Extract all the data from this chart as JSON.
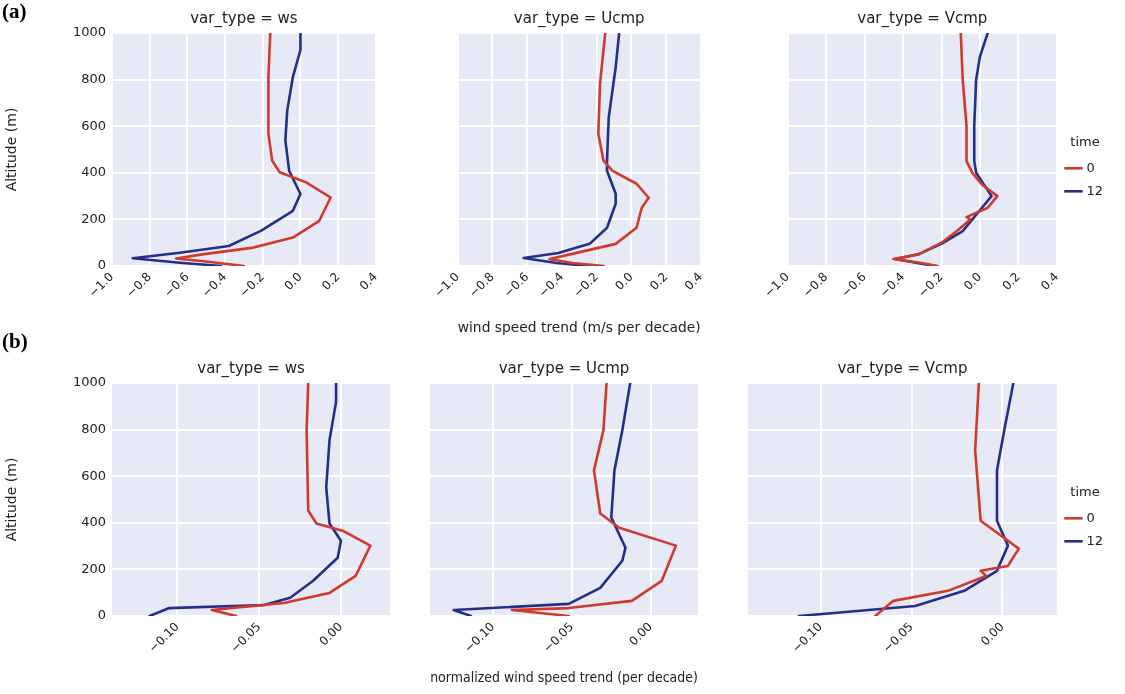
{
  "chart_data": [
    {
      "type": "line",
      "title": "var_type = ws",
      "ylabel": "Altitude (m)",
      "annotations": [
        "(a)"
      ],
      "xlim": [
        -1.0,
        0.4
      ],
      "ylim": [
        0,
        1000
      ],
      "xticks": [
        {
          "value": -1.0,
          "label": "−1.0"
        },
        {
          "value": -0.8,
          "label": "−0.8"
        },
        {
          "value": -0.6,
          "label": "−0.6"
        },
        {
          "value": -0.4,
          "label": "−0.4"
        },
        {
          "value": -0.2,
          "label": "−0.2"
        },
        {
          "value": 0.0,
          "label": "0.0"
        },
        {
          "value": 0.2,
          "label": "0.2"
        },
        {
          "value": 0.4,
          "label": "0.4"
        }
      ],
      "yticks": [
        0,
        200,
        400,
        600,
        800,
        1000
      ],
      "grid": true,
      "legend": false,
      "marker": "none",
      "series": [
        {
          "color": "#d03a2c",
          "x": [
            -0.16,
            -0.17,
            -0.17,
            -0.15,
            -0.11,
            0.03,
            0.16,
            0.1,
            -0.04,
            -0.25,
            -0.52,
            -0.66,
            -0.5,
            -0.3
          ],
          "values": [
            1000,
            812,
            568,
            452,
            402,
            359,
            294,
            194,
            122,
            79,
            50,
            32,
            19,
            0
          ]
        },
        {
          "color": "#22308a",
          "x": [
            0.0,
            0.0,
            -0.04,
            -0.07,
            -0.08,
            -0.06,
            0.0,
            -0.04,
            -0.21,
            -0.38,
            -0.64,
            -0.89,
            -0.64,
            -0.42
          ],
          "values": [
            1000,
            927,
            812,
            668,
            539,
            409,
            309,
            237,
            151,
            86,
            57,
            33,
            14,
            0
          ]
        }
      ]
    },
    {
      "type": "line",
      "title": "var_type = Ucmp",
      "xlabel": "wind speed trend (m/s per decade)",
      "tick_labels": "x",
      "xlim": [
        -1.0,
        0.4
      ],
      "ylim": [
        0,
        1000
      ],
      "xticks": [
        {
          "value": -1.0,
          "label": "−1.0"
        },
        {
          "value": -0.8,
          "label": "−0.8"
        },
        {
          "value": -0.6,
          "label": "−0.6"
        },
        {
          "value": -0.4,
          "label": "−0.4"
        },
        {
          "value": -0.2,
          "label": "−0.2"
        },
        {
          "value": 0.0,
          "label": "0.0"
        },
        {
          "value": 0.2,
          "label": "0.2"
        },
        {
          "value": 0.4,
          "label": "0.4"
        }
      ],
      "yticks": [
        0,
        200,
        400,
        600,
        800,
        1000
      ],
      "grid": true,
      "legend": false,
      "marker": "none",
      "series": [
        {
          "color": "#d03a2c",
          "x": [
            -0.15,
            -0.18,
            -0.19,
            -0.16,
            -0.11,
            0.03,
            0.1,
            0.06,
            0.03,
            -0.09,
            -0.34,
            -0.47,
            -0.34,
            -0.16
          ],
          "values": [
            1000,
            784,
            568,
            452,
            409,
            353,
            293,
            250,
            164,
            95,
            52,
            30,
            13,
            0
          ]
        },
        {
          "color": "#22308a",
          "x": [
            -0.07,
            -0.09,
            -0.13,
            -0.14,
            -0.14,
            -0.09,
            -0.09,
            -0.14,
            -0.24,
            -0.42,
            -0.62,
            -0.43,
            -0.25
          ],
          "values": [
            1000,
            853,
            638,
            452,
            409,
            310,
            267,
            164,
            95,
            56,
            34,
            13,
            0
          ]
        }
      ]
    },
    {
      "type": "line",
      "title": "var_type = Vcmp",
      "tick_labels": "x",
      "legend": "right",
      "legend_title": "time",
      "xlim": [
        -1.0,
        0.4
      ],
      "ylim": [
        0,
        1000
      ],
      "xticks": [
        {
          "value": -1.0,
          "label": "−1.0"
        },
        {
          "value": -0.8,
          "label": "−0.8"
        },
        {
          "value": -0.6,
          "label": "−0.6"
        },
        {
          "value": -0.4,
          "label": "−0.4"
        },
        {
          "value": -0.2,
          "label": "−0.2"
        },
        {
          "value": 0.0,
          "label": "0.0"
        },
        {
          "value": 0.2,
          "label": "0.2"
        },
        {
          "value": 0.4,
          "label": "0.4"
        }
      ],
      "yticks": [
        0,
        200,
        400,
        600,
        800,
        1000
      ],
      "grid": true,
      "marker": "none",
      "series": [
        {
          "name": "0",
          "color": "#d03a2c",
          "x": [
            -0.1,
            -0.09,
            -0.07,
            -0.07,
            -0.04,
            0.01,
            0.09,
            0.04,
            -0.07,
            -0.05,
            -0.12,
            -0.2,
            -0.32,
            -0.45,
            -0.32,
            -0.22
          ],
          "values": [
            1000,
            800,
            600,
            450,
            400,
            350,
            300,
            250,
            210,
            200,
            150,
            100,
            50,
            30,
            15,
            0
          ]
        },
        {
          "name": "12",
          "color": "#22308a",
          "x": [
            0.04,
            0.0,
            -0.02,
            -0.03,
            -0.03,
            -0.02,
            0.02,
            0.06,
            0.01,
            -0.09,
            -0.19,
            -0.32,
            -0.44,
            -0.34,
            -0.24
          ],
          "values": [
            1000,
            900,
            800,
            600,
            450,
            400,
            350,
            300,
            250,
            150,
            100,
            50,
            30,
            15,
            0
          ]
        }
      ]
    },
    {
      "type": "line",
      "title": "var_type = ws",
      "ylabel": "Altitude (m)",
      "annotations": [
        "(b)"
      ],
      "xlim": [
        -0.14,
        0.03
      ],
      "ylim": [
        0,
        1000
      ],
      "xticks": [
        {
          "value": -0.1,
          "label": "−0.10"
        },
        {
          "value": -0.05,
          "label": "−0.05"
        },
        {
          "value": 0.0,
          "label": "0.00"
        }
      ],
      "yticks": [
        0,
        200,
        400,
        600,
        800,
        1000
      ],
      "grid": true,
      "legend": false,
      "marker": "none",
      "series": [
        {
          "color": "#d03a2c",
          "x": [
            -0.02,
            -0.021,
            -0.02,
            -0.015,
            0.001,
            0.018,
            0.009,
            -0.007,
            -0.035,
            -0.079,
            -0.064
          ],
          "values": [
            1000,
            797,
            453,
            397,
            366,
            302,
            172,
            99,
            56,
            26,
            0
          ]
        },
        {
          "color": "#22308a",
          "x": [
            -0.003,
            -0.003,
            -0.007,
            -0.009,
            -0.007,
            0.0,
            -0.002,
            -0.017,
            -0.031,
            -0.047,
            -0.105,
            -0.117
          ],
          "values": [
            1000,
            918,
            754,
            552,
            397,
            323,
            250,
            151,
            78,
            47,
            34,
            0
          ]
        }
      ]
    },
    {
      "type": "line",
      "title": "var_type = Ucmp",
      "xlabel": "normalized wind speed trend (per decade)",
      "tick_labels": "x",
      "xlim": [
        -0.14,
        0.03
      ],
      "ylim": [
        0,
        1000
      ],
      "xticks": [
        {
          "value": -0.1,
          "label": "−0.10"
        },
        {
          "value": -0.05,
          "label": "−0.05"
        },
        {
          "value": 0.0,
          "label": "0.00"
        }
      ],
      "yticks": [
        0,
        200,
        400,
        600,
        800,
        1000
      ],
      "grid": true,
      "legend": false,
      "marker": "none",
      "series": [
        {
          "color": "#d03a2c",
          "x": [
            -0.028,
            -0.03,
            -0.036,
            -0.032,
            -0.02,
            0.016,
            0.007,
            -0.012,
            -0.052,
            -0.088,
            -0.052
          ],
          "values": [
            1000,
            797,
            625,
            440,
            379,
            302,
            151,
            65,
            34,
            26,
            0
          ]
        },
        {
          "color": "#22308a",
          "x": [
            -0.013,
            -0.018,
            -0.023,
            -0.025,
            -0.016,
            -0.018,
            -0.032,
            -0.052,
            -0.125,
            -0.114
          ],
          "values": [
            1000,
            797,
            625,
            422,
            293,
            237,
            121,
            52,
            26,
            0
          ]
        }
      ]
    },
    {
      "type": "line",
      "title": "var_type = Vcmp",
      "tick_labels": "x",
      "legend": "right",
      "legend_title": "time",
      "xlim": [
        -0.14,
        0.03
      ],
      "ylim": [
        0,
        1000
      ],
      "xticks": [
        {
          "value": -0.1,
          "label": "−0.10"
        },
        {
          "value": -0.05,
          "label": "−0.05"
        },
        {
          "value": 0.0,
          "label": "0.00"
        }
      ],
      "yticks": [
        0,
        200,
        400,
        600,
        800,
        1000
      ],
      "grid": true,
      "marker": "none",
      "series": [
        {
          "name": "0",
          "color": "#d03a2c",
          "x": [
            -0.013,
            -0.015,
            -0.012,
            0.009,
            0.003,
            -0.012,
            -0.009,
            -0.03,
            -0.06,
            -0.07
          ],
          "values": [
            1000,
            711,
            409,
            289,
            215,
            194,
            172,
            108,
            65,
            0
          ]
        },
        {
          "name": "12",
          "color": "#22308a",
          "x": [
            0.006,
            0.001,
            -0.003,
            -0.003,
            0.003,
            -0.003,
            -0.021,
            -0.048,
            -0.112
          ],
          "values": [
            1000,
            797,
            625,
            409,
            302,
            194,
            108,
            43,
            0
          ]
        }
      ]
    }
  ]
}
